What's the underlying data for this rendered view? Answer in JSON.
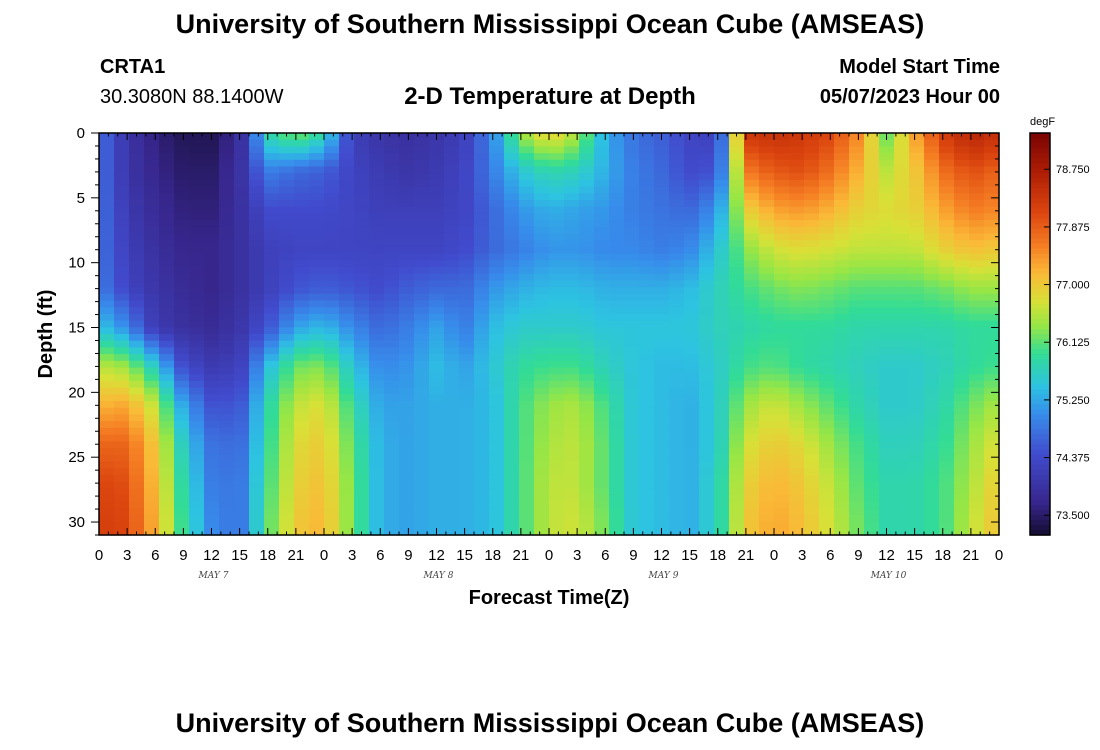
{
  "titles": {
    "main": "University of Southern Mississippi Ocean Cube (AMSEAS)",
    "station": "CRTA1",
    "coords": "30.3080N  88.1400W",
    "subtitle": "2-D Temperature at Depth",
    "model_start_label": "Model Start Time",
    "model_start_value": "05/07/2023 Hour 00",
    "repeat_title": "University of Southern Mississippi Ocean Cube (AMSEAS)"
  },
  "chart_data": {
    "type": "heatmap",
    "xlabel": "Forecast Time(Z)",
    "ylabel": "Depth (ft)",
    "colorbar_unit": "degF",
    "x_tick_labels": [
      "0",
      "3",
      "6",
      "9",
      "12",
      "15",
      "18",
      "21",
      "0",
      "3",
      "6",
      "9",
      "12",
      "15",
      "18",
      "21",
      "0",
      "3",
      "6",
      "9",
      "12",
      "15",
      "18",
      "21",
      "0",
      "3",
      "6",
      "9",
      "12",
      "15",
      "18",
      "21",
      "0"
    ],
    "day_labels": [
      "MAY 7",
      "MAY 8",
      "MAY 9",
      "MAY 10"
    ],
    "xlim_hours": [
      0,
      96
    ],
    "y_ticks": [
      0,
      5,
      10,
      15,
      20,
      25,
      30
    ],
    "ylim_ft": [
      0,
      31
    ],
    "y_inverted": true,
    "colorbar_ticks": [
      "73.500",
      "74.375",
      "75.250",
      "76.125",
      "77.000",
      "77.875",
      "78.750"
    ],
    "color_range_degF": [
      73.2,
      79.3
    ],
    "time_hours": [
      0,
      3,
      6,
      9,
      12,
      15,
      18,
      21,
      24,
      27,
      30,
      33,
      36,
      39,
      42,
      45,
      48,
      51,
      54,
      57,
      60,
      63,
      66,
      69,
      72,
      75,
      78,
      81,
      84,
      87,
      90,
      93,
      96
    ],
    "depths_ft": [
      0,
      3,
      6,
      9,
      12,
      15,
      18,
      21,
      24,
      27,
      30,
      31
    ],
    "temperature_degF": [
      [
        74.8,
        74.0,
        73.6,
        73.4,
        73.4,
        73.8,
        75.8,
        76.3,
        75.8,
        74.2,
        74.0,
        73.9,
        74.0,
        74.2,
        75.0,
        76.4,
        77.0,
        76.5,
        75.3,
        74.8,
        74.6,
        74.3,
        74.2,
        78.3,
        78.4,
        78.3,
        78.1,
        77.5,
        76.2,
        77.3,
        78.2,
        78.6,
        78.4
      ],
      [
        74.8,
        74.0,
        73.7,
        73.5,
        73.5,
        73.9,
        74.9,
        74.7,
        74.6,
        74.3,
        74.1,
        74.0,
        74.1,
        74.3,
        74.9,
        75.5,
        75.8,
        75.7,
        75.3,
        74.9,
        74.7,
        74.4,
        74.5,
        77.6,
        77.9,
        78.0,
        77.7,
        77.2,
        76.6,
        77.0,
        77.7,
        78.0,
        77.8
      ],
      [
        74.8,
        74.1,
        73.8,
        73.6,
        73.6,
        73.9,
        74.4,
        74.4,
        74.4,
        74.3,
        74.2,
        74.2,
        74.2,
        74.3,
        74.7,
        75.1,
        75.3,
        75.2,
        75.1,
        74.9,
        74.8,
        74.7,
        75.1,
        76.9,
        77.3,
        77.4,
        77.2,
        76.9,
        76.8,
        76.9,
        77.3,
        77.6,
        77.5
      ],
      [
        74.8,
        74.2,
        73.9,
        73.7,
        73.7,
        73.9,
        74.2,
        74.3,
        74.3,
        74.3,
        74.3,
        74.3,
        74.3,
        74.4,
        74.7,
        74.9,
        75.1,
        75.1,
        75.0,
        75.0,
        74.9,
        75.0,
        75.5,
        76.3,
        76.7,
        76.8,
        76.7,
        76.6,
        76.6,
        76.6,
        76.9,
        77.1,
        77.0
      ],
      [
        74.9,
        74.3,
        74.0,
        73.8,
        73.7,
        73.9,
        74.2,
        74.5,
        74.6,
        74.5,
        74.4,
        74.6,
        74.7,
        74.7,
        75.1,
        75.3,
        75.4,
        75.4,
        75.3,
        75.3,
        75.3,
        75.4,
        75.7,
        76.0,
        76.2,
        76.3,
        76.2,
        76.1,
        76.1,
        76.1,
        76.2,
        76.4,
        76.4
      ],
      [
        75.5,
        75.0,
        74.1,
        73.9,
        73.8,
        74.0,
        74.5,
        75.2,
        75.4,
        75.0,
        74.7,
        74.9,
        75.2,
        74.9,
        75.4,
        75.6,
        75.6,
        75.6,
        75.5,
        75.5,
        75.5,
        75.5,
        75.7,
        75.8,
        75.9,
        75.9,
        75.9,
        75.8,
        75.8,
        75.8,
        75.8,
        75.9,
        75.9
      ],
      [
        76.6,
        76.4,
        75.6,
        74.4,
        74.1,
        74.2,
        75.4,
        76.2,
        76.3,
        75.5,
        75.0,
        75.1,
        75.4,
        75.2,
        75.5,
        75.9,
        76.0,
        76.0,
        75.7,
        75.5,
        75.4,
        75.4,
        75.6,
        76.0,
        76.1,
        75.9,
        75.8,
        75.7,
        75.6,
        75.6,
        75.7,
        75.9,
        76.0
      ],
      [
        77.2,
        77.3,
        76.6,
        75.2,
        74.5,
        74.5,
        75.8,
        76.6,
        76.8,
        75.9,
        75.2,
        75.2,
        75.3,
        75.3,
        75.4,
        76.0,
        76.4,
        76.5,
        76.0,
        75.5,
        75.4,
        75.3,
        75.6,
        76.4,
        76.7,
        76.4,
        76.1,
        75.8,
        75.6,
        75.6,
        75.8,
        76.2,
        76.5
      ],
      [
        77.8,
        77.8,
        77.0,
        75.6,
        74.8,
        74.7,
        75.9,
        76.8,
        77.0,
        76.1,
        75.3,
        75.2,
        75.3,
        75.3,
        75.4,
        76.0,
        76.5,
        76.6,
        76.1,
        75.5,
        75.4,
        75.3,
        75.6,
        76.7,
        77.0,
        76.8,
        76.4,
        76.0,
        75.7,
        75.7,
        75.9,
        76.4,
        76.8
      ],
      [
        78.1,
        78.0,
        77.1,
        75.8,
        74.9,
        74.8,
        76.0,
        76.9,
        77.1,
        76.2,
        75.3,
        75.2,
        75.3,
        75.3,
        75.4,
        76.0,
        76.6,
        76.6,
        76.1,
        75.5,
        75.4,
        75.3,
        75.7,
        76.9,
        77.2,
        77.0,
        76.6,
        76.1,
        75.8,
        75.8,
        76.0,
        76.5,
        77.0
      ],
      [
        78.2,
        78.1,
        77.2,
        75.9,
        75.0,
        74.8,
        76.1,
        77.0,
        77.2,
        76.2,
        75.3,
        75.2,
        75.3,
        75.3,
        75.4,
        76.0,
        76.6,
        76.7,
        76.2,
        75.5,
        75.4,
        75.3,
        75.7,
        77.0,
        77.3,
        77.1,
        76.7,
        76.2,
        75.8,
        75.8,
        76.0,
        76.6,
        77.1
      ],
      [
        78.2,
        78.1,
        77.2,
        75.9,
        75.0,
        74.8,
        76.1,
        77.0,
        77.2,
        76.2,
        75.3,
        75.2,
        75.3,
        75.3,
        75.4,
        76.0,
        76.6,
        76.7,
        76.2,
        75.5,
        75.4,
        75.3,
        75.7,
        77.0,
        77.3,
        77.1,
        76.7,
        76.2,
        75.8,
        75.8,
        76.0,
        76.6,
        77.1
      ]
    ]
  }
}
